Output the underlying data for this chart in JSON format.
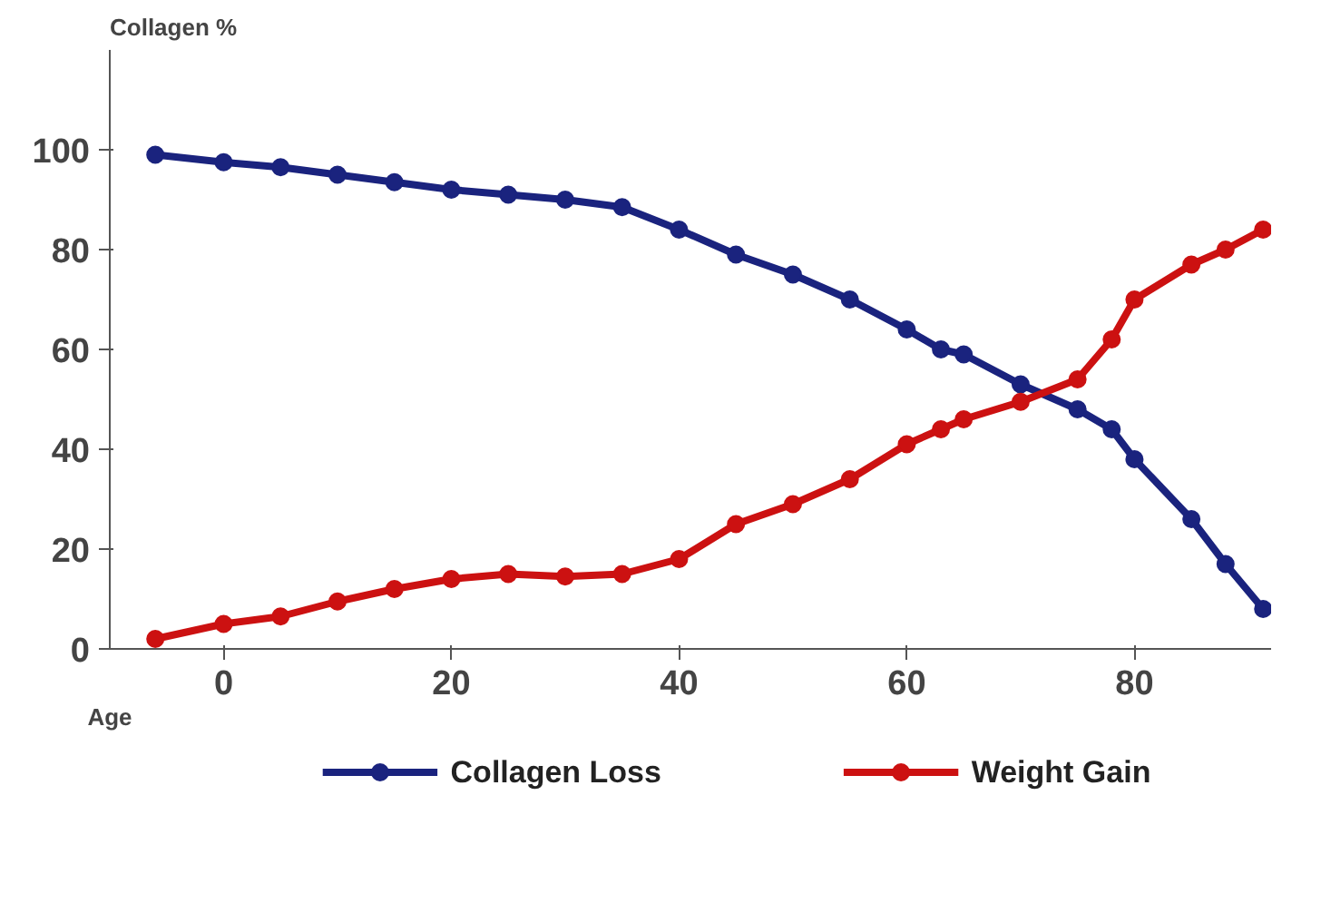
{
  "chart_data": {
    "type": "line",
    "ylabel": "Collagen %",
    "xlabel": "Age",
    "x": [
      -6,
      0,
      5,
      10,
      15,
      20,
      25,
      30,
      35,
      40,
      45,
      50,
      55,
      60,
      63,
      65,
      70,
      75,
      78,
      80,
      85,
      88,
      91.3
    ],
    "series": [
      {
        "name": "Collagen Loss",
        "color": "#1a237e",
        "values": [
          99,
          97.5,
          96.5,
          95,
          93.5,
          92,
          91,
          90,
          88.5,
          84,
          79,
          75,
          70,
          64,
          60,
          59,
          53,
          48,
          44,
          38,
          26,
          17,
          8
        ]
      },
      {
        "name": "Weight Gain",
        "color": "#cc1111",
        "values": [
          2,
          5,
          6.5,
          9.5,
          12,
          14,
          15,
          14.5,
          15,
          18,
          25,
          29,
          34,
          41,
          44,
          46,
          49.5,
          54,
          62,
          70,
          77,
          80,
          84
        ]
      }
    ],
    "xlim": [
      -10,
      92
    ],
    "ylim": [
      0,
      120
    ],
    "xticks": [
      0,
      20,
      40,
      60,
      80
    ],
    "yticks": [
      0,
      20,
      40,
      60,
      80,
      100
    ],
    "grid": false,
    "legend": "bottom",
    "marker": "circle"
  }
}
